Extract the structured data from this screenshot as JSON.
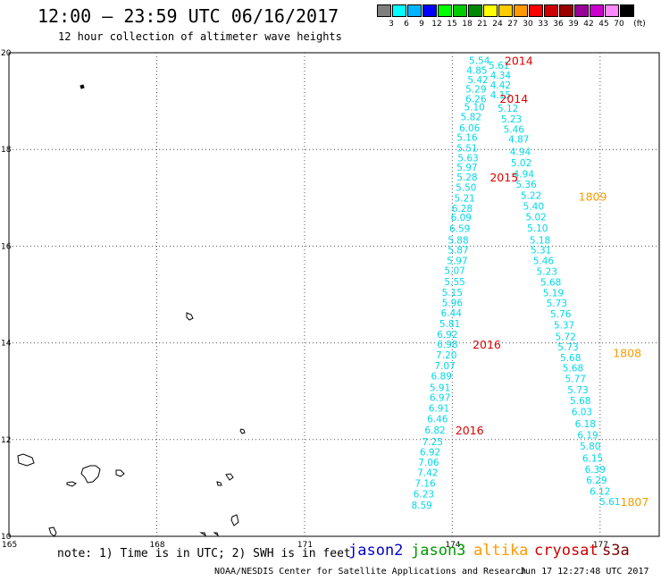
{
  "title": "12:00 — 23:59 UTC 06/16/2017",
  "subtitle": "12 hour collection of altimeter wave heights",
  "colorbar": {
    "unit": "(ft)",
    "bins": [
      {
        "label": "3",
        "color": "#7f7f7f"
      },
      {
        "label": "6",
        "color": "#00ffff"
      },
      {
        "label": "9",
        "color": "#00b4ff"
      },
      {
        "label": "12",
        "color": "#0000ff"
      },
      {
        "label": "15",
        "color": "#00ff00"
      },
      {
        "label": "18",
        "color": "#00cc00"
      },
      {
        "label": "21",
        "color": "#008800"
      },
      {
        "label": "24",
        "color": "#ffff00"
      },
      {
        "label": "27",
        "color": "#ffcc00"
      },
      {
        "label": "30",
        "color": "#ff9900"
      },
      {
        "label": "33",
        "color": "#ff0000"
      },
      {
        "label": "36",
        "color": "#cc0000"
      },
      {
        "label": "39",
        "color": "#990000"
      },
      {
        "label": "42",
        "color": "#990099"
      },
      {
        "label": "45",
        "color": "#cc00cc"
      },
      {
        "label": "70",
        "color": "#ff88ff"
      },
      {
        "label": "",
        "color": "#000000"
      }
    ]
  },
  "chart_data": {
    "type": "map",
    "xlim": [
      165,
      178.2
    ],
    "ylim": [
      10,
      20
    ],
    "x_ticks": [
      "165",
      "168",
      "171",
      "174",
      "177"
    ],
    "x_tick_values": [
      165,
      168,
      171,
      174,
      177
    ],
    "y_ticks": [
      "20",
      "18",
      "16",
      "14",
      "12",
      "10"
    ],
    "y_tick_values": [
      20,
      18,
      16,
      14,
      12,
      10
    ],
    "grid": true,
    "colors": {
      "cyan": "#00d8e8",
      "red": "#e00000",
      "orange": "#f59c00"
    },
    "wave_heights": [
      {
        "lon": 174.55,
        "lat": 19.84,
        "label": "5.54",
        "color": "cyan"
      },
      {
        "lon": 174.95,
        "lat": 19.74,
        "label": "5.61",
        "color": "cyan"
      },
      {
        "lon": 174.5,
        "lat": 19.64,
        "label": "4.85",
        "color": "cyan"
      },
      {
        "lon": 174.98,
        "lat": 19.54,
        "label": "4.34",
        "color": "cyan"
      },
      {
        "lon": 174.52,
        "lat": 19.45,
        "label": "5.42",
        "color": "cyan"
      },
      {
        "lon": 174.98,
        "lat": 19.33,
        "label": "4.42",
        "color": "cyan"
      },
      {
        "lon": 174.48,
        "lat": 19.25,
        "label": "5.29",
        "color": "cyan"
      },
      {
        "lon": 174.98,
        "lat": 19.13,
        "label": "4.15",
        "color": "cyan"
      },
      {
        "lon": 174.48,
        "lat": 19.05,
        "label": "6.26",
        "color": "cyan"
      },
      {
        "lon": 175.13,
        "lat": 18.85,
        "label": "5.12",
        "color": "cyan"
      },
      {
        "lon": 174.45,
        "lat": 18.88,
        "label": "5.10",
        "color": "cyan"
      },
      {
        "lon": 175.2,
        "lat": 18.63,
        "label": "5.23",
        "color": "cyan"
      },
      {
        "lon": 174.38,
        "lat": 18.68,
        "label": "5.82",
        "color": "cyan"
      },
      {
        "lon": 175.25,
        "lat": 18.42,
        "label": "5.46",
        "color": "cyan"
      },
      {
        "lon": 174.35,
        "lat": 18.45,
        "label": "6.06",
        "color": "cyan"
      },
      {
        "lon": 175.35,
        "lat": 18.22,
        "label": "4.87",
        "color": "cyan"
      },
      {
        "lon": 174.3,
        "lat": 18.25,
        "label": "5.16",
        "color": "cyan"
      },
      {
        "lon": 174.3,
        "lat": 18.03,
        "label": "5.51",
        "color": "cyan"
      },
      {
        "lon": 175.38,
        "lat": 17.96,
        "label": "4.94",
        "color": "cyan"
      },
      {
        "lon": 174.32,
        "lat": 17.83,
        "label": "5.63",
        "color": "cyan"
      },
      {
        "lon": 175.4,
        "lat": 17.73,
        "label": "5.02",
        "color": "cyan"
      },
      {
        "lon": 174.3,
        "lat": 17.63,
        "label": "5.97",
        "color": "cyan"
      },
      {
        "lon": 175.45,
        "lat": 17.5,
        "label": "4.94",
        "color": "cyan"
      },
      {
        "lon": 174.3,
        "lat": 17.43,
        "label": "5.28",
        "color": "cyan"
      },
      {
        "lon": 175.5,
        "lat": 17.28,
        "label": "5.36",
        "color": "cyan"
      },
      {
        "lon": 174.28,
        "lat": 17.22,
        "label": "5.50",
        "color": "cyan"
      },
      {
        "lon": 175.6,
        "lat": 17.05,
        "label": "5.22",
        "color": "cyan"
      },
      {
        "lon": 174.25,
        "lat": 17.0,
        "label": "5.21",
        "color": "cyan"
      },
      {
        "lon": 175.65,
        "lat": 16.83,
        "label": "5.40",
        "color": "cyan"
      },
      {
        "lon": 174.2,
        "lat": 16.78,
        "label": "6.28",
        "color": "cyan"
      },
      {
        "lon": 174.18,
        "lat": 16.6,
        "label": "6.09",
        "color": "cyan"
      },
      {
        "lon": 175.7,
        "lat": 16.61,
        "label": "5.02",
        "color": "cyan"
      },
      {
        "lon": 174.15,
        "lat": 16.37,
        "label": "6.59",
        "color": "cyan"
      },
      {
        "lon": 175.73,
        "lat": 16.38,
        "label": "5.10",
        "color": "cyan"
      },
      {
        "lon": 174.12,
        "lat": 16.13,
        "label": "5.88",
        "color": "cyan"
      },
      {
        "lon": 175.78,
        "lat": 16.13,
        "label": "5.18",
        "color": "cyan"
      },
      {
        "lon": 174.12,
        "lat": 15.92,
        "label": "5.87",
        "color": "cyan"
      },
      {
        "lon": 175.8,
        "lat": 15.92,
        "label": "5.31",
        "color": "cyan"
      },
      {
        "lon": 174.1,
        "lat": 15.7,
        "label": "5.97",
        "color": "cyan"
      },
      {
        "lon": 175.85,
        "lat": 15.7,
        "label": "5.46",
        "color": "cyan"
      },
      {
        "lon": 174.05,
        "lat": 15.5,
        "label": "5.07",
        "color": "cyan"
      },
      {
        "lon": 175.92,
        "lat": 15.48,
        "label": "5.23",
        "color": "cyan"
      },
      {
        "lon": 174.05,
        "lat": 15.27,
        "label": "5.55",
        "color": "cyan"
      },
      {
        "lon": 176.0,
        "lat": 15.26,
        "label": "5.68",
        "color": "cyan"
      },
      {
        "lon": 174.0,
        "lat": 15.05,
        "label": "5.15",
        "color": "cyan"
      },
      {
        "lon": 176.05,
        "lat": 15.04,
        "label": "5.19",
        "color": "cyan"
      },
      {
        "lon": 174.0,
        "lat": 14.83,
        "label": "5.96",
        "color": "cyan"
      },
      {
        "lon": 176.12,
        "lat": 14.82,
        "label": "5.73",
        "color": "cyan"
      },
      {
        "lon": 173.98,
        "lat": 14.62,
        "label": "6.44",
        "color": "cyan"
      },
      {
        "lon": 176.2,
        "lat": 14.6,
        "label": "5.76",
        "color": "cyan"
      },
      {
        "lon": 173.95,
        "lat": 14.4,
        "label": "5.81",
        "color": "cyan"
      },
      {
        "lon": 176.27,
        "lat": 14.37,
        "label": "5.37",
        "color": "cyan"
      },
      {
        "lon": 173.9,
        "lat": 14.18,
        "label": "6.92",
        "color": "cyan"
      },
      {
        "lon": 176.3,
        "lat": 14.13,
        "label": "5.72",
        "color": "cyan"
      },
      {
        "lon": 173.9,
        "lat": 13.97,
        "label": "6.98",
        "color": "cyan"
      },
      {
        "lon": 176.35,
        "lat": 13.92,
        "label": "5.73",
        "color": "cyan"
      },
      {
        "lon": 173.88,
        "lat": 13.75,
        "label": "7.20",
        "color": "cyan"
      },
      {
        "lon": 176.4,
        "lat": 13.7,
        "label": "5.68",
        "color": "cyan"
      },
      {
        "lon": 173.85,
        "lat": 13.53,
        "label": "7.07",
        "color": "cyan"
      },
      {
        "lon": 176.45,
        "lat": 13.48,
        "label": "5.68",
        "color": "cyan"
      },
      {
        "lon": 173.78,
        "lat": 13.32,
        "label": "6.89",
        "color": "cyan"
      },
      {
        "lon": 176.5,
        "lat": 13.26,
        "label": "5.77",
        "color": "cyan"
      },
      {
        "lon": 173.75,
        "lat": 13.08,
        "label": "5.91",
        "color": "cyan"
      },
      {
        "lon": 176.55,
        "lat": 13.03,
        "label": "5.73",
        "color": "cyan"
      },
      {
        "lon": 173.75,
        "lat": 12.87,
        "label": "6.97",
        "color": "cyan"
      },
      {
        "lon": 176.6,
        "lat": 12.81,
        "label": "5.68",
        "color": "cyan"
      },
      {
        "lon": 173.73,
        "lat": 12.65,
        "label": "6.91",
        "color": "cyan"
      },
      {
        "lon": 176.63,
        "lat": 12.58,
        "label": "6.03",
        "color": "cyan"
      },
      {
        "lon": 173.7,
        "lat": 12.43,
        "label": "6.46",
        "color": "cyan"
      },
      {
        "lon": 176.7,
        "lat": 12.33,
        "label": "6.18",
        "color": "cyan"
      },
      {
        "lon": 173.65,
        "lat": 12.2,
        "label": "6.82",
        "color": "cyan"
      },
      {
        "lon": 176.75,
        "lat": 12.1,
        "label": "6.19",
        "color": "cyan"
      },
      {
        "lon": 173.6,
        "lat": 11.96,
        "label": "7.25",
        "color": "cyan"
      },
      {
        "lon": 176.8,
        "lat": 11.87,
        "label": "5.80",
        "color": "cyan"
      },
      {
        "lon": 173.55,
        "lat": 11.75,
        "label": "6.92",
        "color": "cyan"
      },
      {
        "lon": 176.85,
        "lat": 11.62,
        "label": "6.15",
        "color": "cyan"
      },
      {
        "lon": 173.52,
        "lat": 11.53,
        "label": "7.06",
        "color": "cyan"
      },
      {
        "lon": 176.9,
        "lat": 11.39,
        "label": "6.39",
        "color": "cyan"
      },
      {
        "lon": 173.5,
        "lat": 11.32,
        "label": "7.42",
        "color": "cyan"
      },
      {
        "lon": 176.93,
        "lat": 11.16,
        "label": "6.29",
        "color": "cyan"
      },
      {
        "lon": 173.45,
        "lat": 11.1,
        "label": "7.16",
        "color": "cyan"
      },
      {
        "lon": 177.0,
        "lat": 10.93,
        "label": "6.12",
        "color": "cyan"
      },
      {
        "lon": 173.42,
        "lat": 10.88,
        "label": "6.23",
        "color": "cyan"
      },
      {
        "lon": 173.38,
        "lat": 10.65,
        "label": "8.59",
        "color": "cyan"
      },
      {
        "lon": 177.2,
        "lat": 10.72,
        "label": "5.61",
        "color": "cyan"
      }
    ],
    "pass_labels": [
      {
        "lon": 175.35,
        "lat": 19.84,
        "label": "2014",
        "color": "red"
      },
      {
        "lon": 175.25,
        "lat": 19.06,
        "label": "2014",
        "color": "red"
      },
      {
        "lon": 175.05,
        "lat": 17.43,
        "label": "2015",
        "color": "red"
      },
      {
        "lon": 176.85,
        "lat": 17.03,
        "label": "1809",
        "color": "orange"
      },
      {
        "lon": 174.7,
        "lat": 13.97,
        "label": "2016",
        "color": "red"
      },
      {
        "lon": 177.55,
        "lat": 13.8,
        "label": "1808",
        "color": "orange"
      },
      {
        "lon": 174.35,
        "lat": 12.2,
        "label": "2016",
        "color": "red"
      },
      {
        "lon": 177.7,
        "lat": 10.72,
        "label": "1807",
        "color": "orange"
      }
    ]
  },
  "footer": {
    "note": "note: 1) Time is in UTC; 2) SWH is in feet",
    "satellites": [
      {
        "label": "jason2",
        "color": "#0000cc"
      },
      {
        "label": "jason3",
        "color": "#009900"
      },
      {
        "label": "altika",
        "color": "#ff9900"
      },
      {
        "label": "cryosat",
        "color": "#cc0000"
      },
      {
        "label": "s3a",
        "color": "#800000"
      }
    ],
    "credit": "NOAA/NESDIS Center for Satellite Applications and Research",
    "timestamp": "Jun 17 12:27:48 UTC 2017"
  }
}
